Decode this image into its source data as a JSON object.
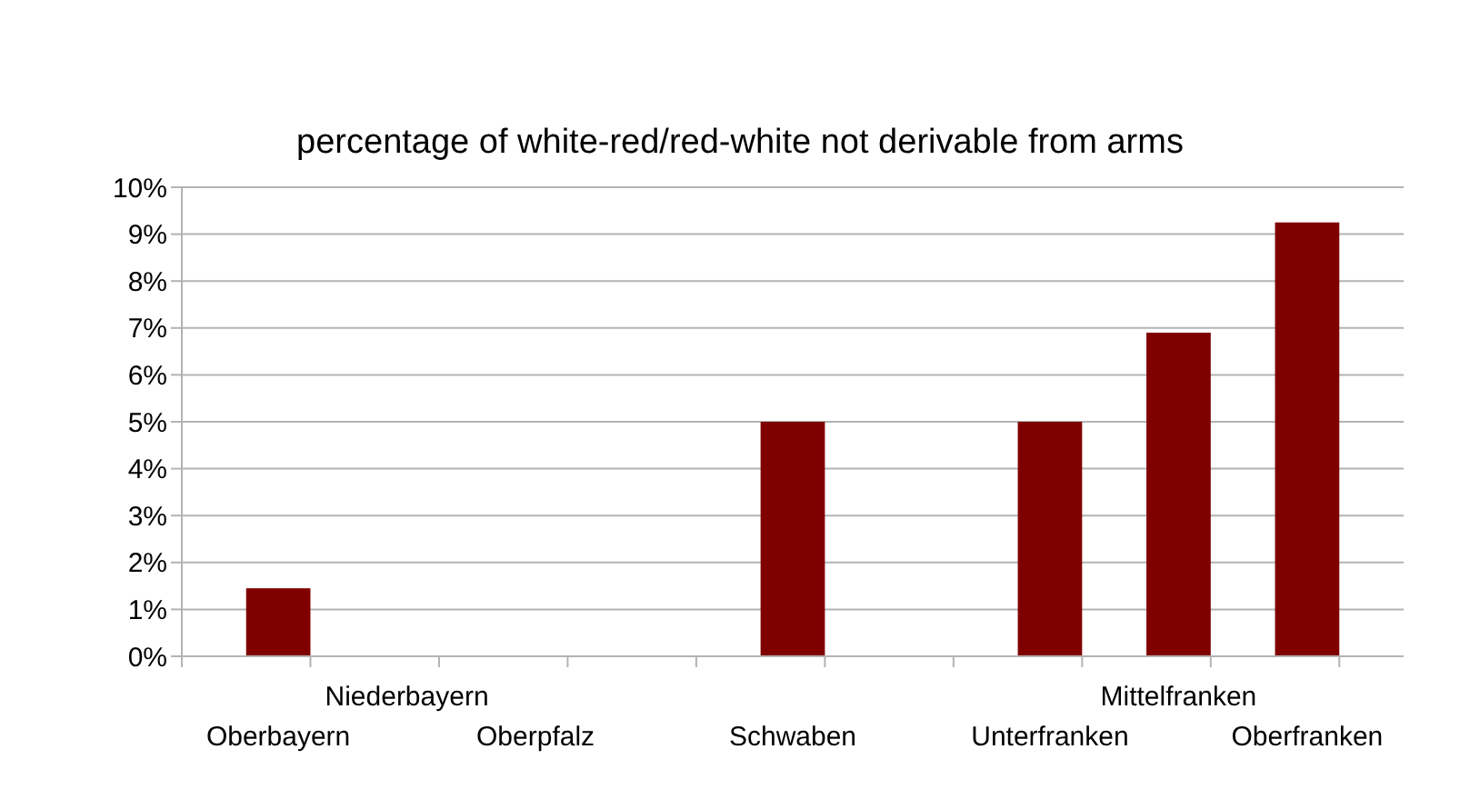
{
  "chart_data": {
    "type": "bar",
    "title": "percentage of white-red/red-white not derivable from arms",
    "categories": [
      "Oberbayern",
      "Niederbayern",
      "Oberpfalz",
      null,
      "Schwaben",
      null,
      "Unterfranken",
      "Mittelfranken",
      "Oberfranken"
    ],
    "values": [
      1.45,
      0,
      0,
      null,
      5,
      null,
      5,
      6.9,
      9.25
    ],
    "color": "#800000",
    "ylim": [
      0,
      10
    ],
    "yticks": [
      {
        "value": 0,
        "label": "0%"
      },
      {
        "value": 1,
        "label": "1%"
      },
      {
        "value": 2,
        "label": "2%"
      },
      {
        "value": 3,
        "label": "3%"
      },
      {
        "value": 4,
        "label": "4%"
      },
      {
        "value": 5,
        "label": "5%"
      },
      {
        "value": 6,
        "label": "6%"
      },
      {
        "value": 7,
        "label": "7%"
      },
      {
        "value": 8,
        "label": "8%"
      },
      {
        "value": 9,
        "label": "9%"
      },
      {
        "value": 10,
        "label": "10%"
      }
    ],
    "grid": "y"
  }
}
